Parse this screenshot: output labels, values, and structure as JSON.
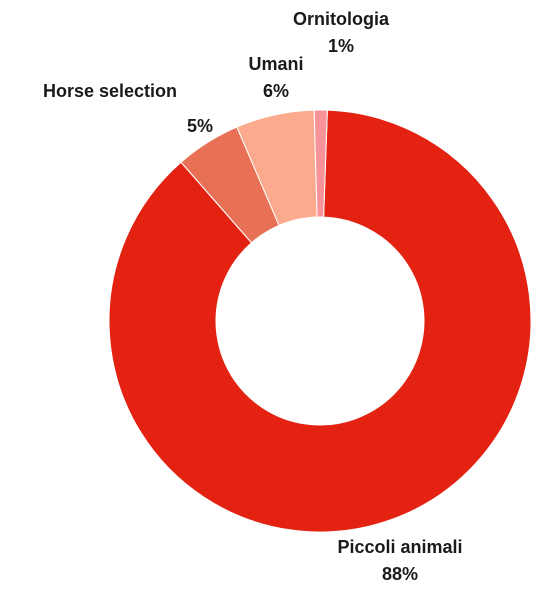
{
  "chart_data": {
    "type": "pie",
    "donut": true,
    "title": "",
    "legend": "none",
    "categories": [
      "Piccoli animali",
      "Horse selection",
      "Umani",
      "Ornitologia"
    ],
    "values": [
      88,
      5,
      6,
      1
    ],
    "value_labels": [
      "88%",
      "5%",
      "6%",
      "1%"
    ],
    "colors": [
      "#e32212",
      "#e87055",
      "#fcaa8e",
      "#f8939a"
    ]
  }
}
